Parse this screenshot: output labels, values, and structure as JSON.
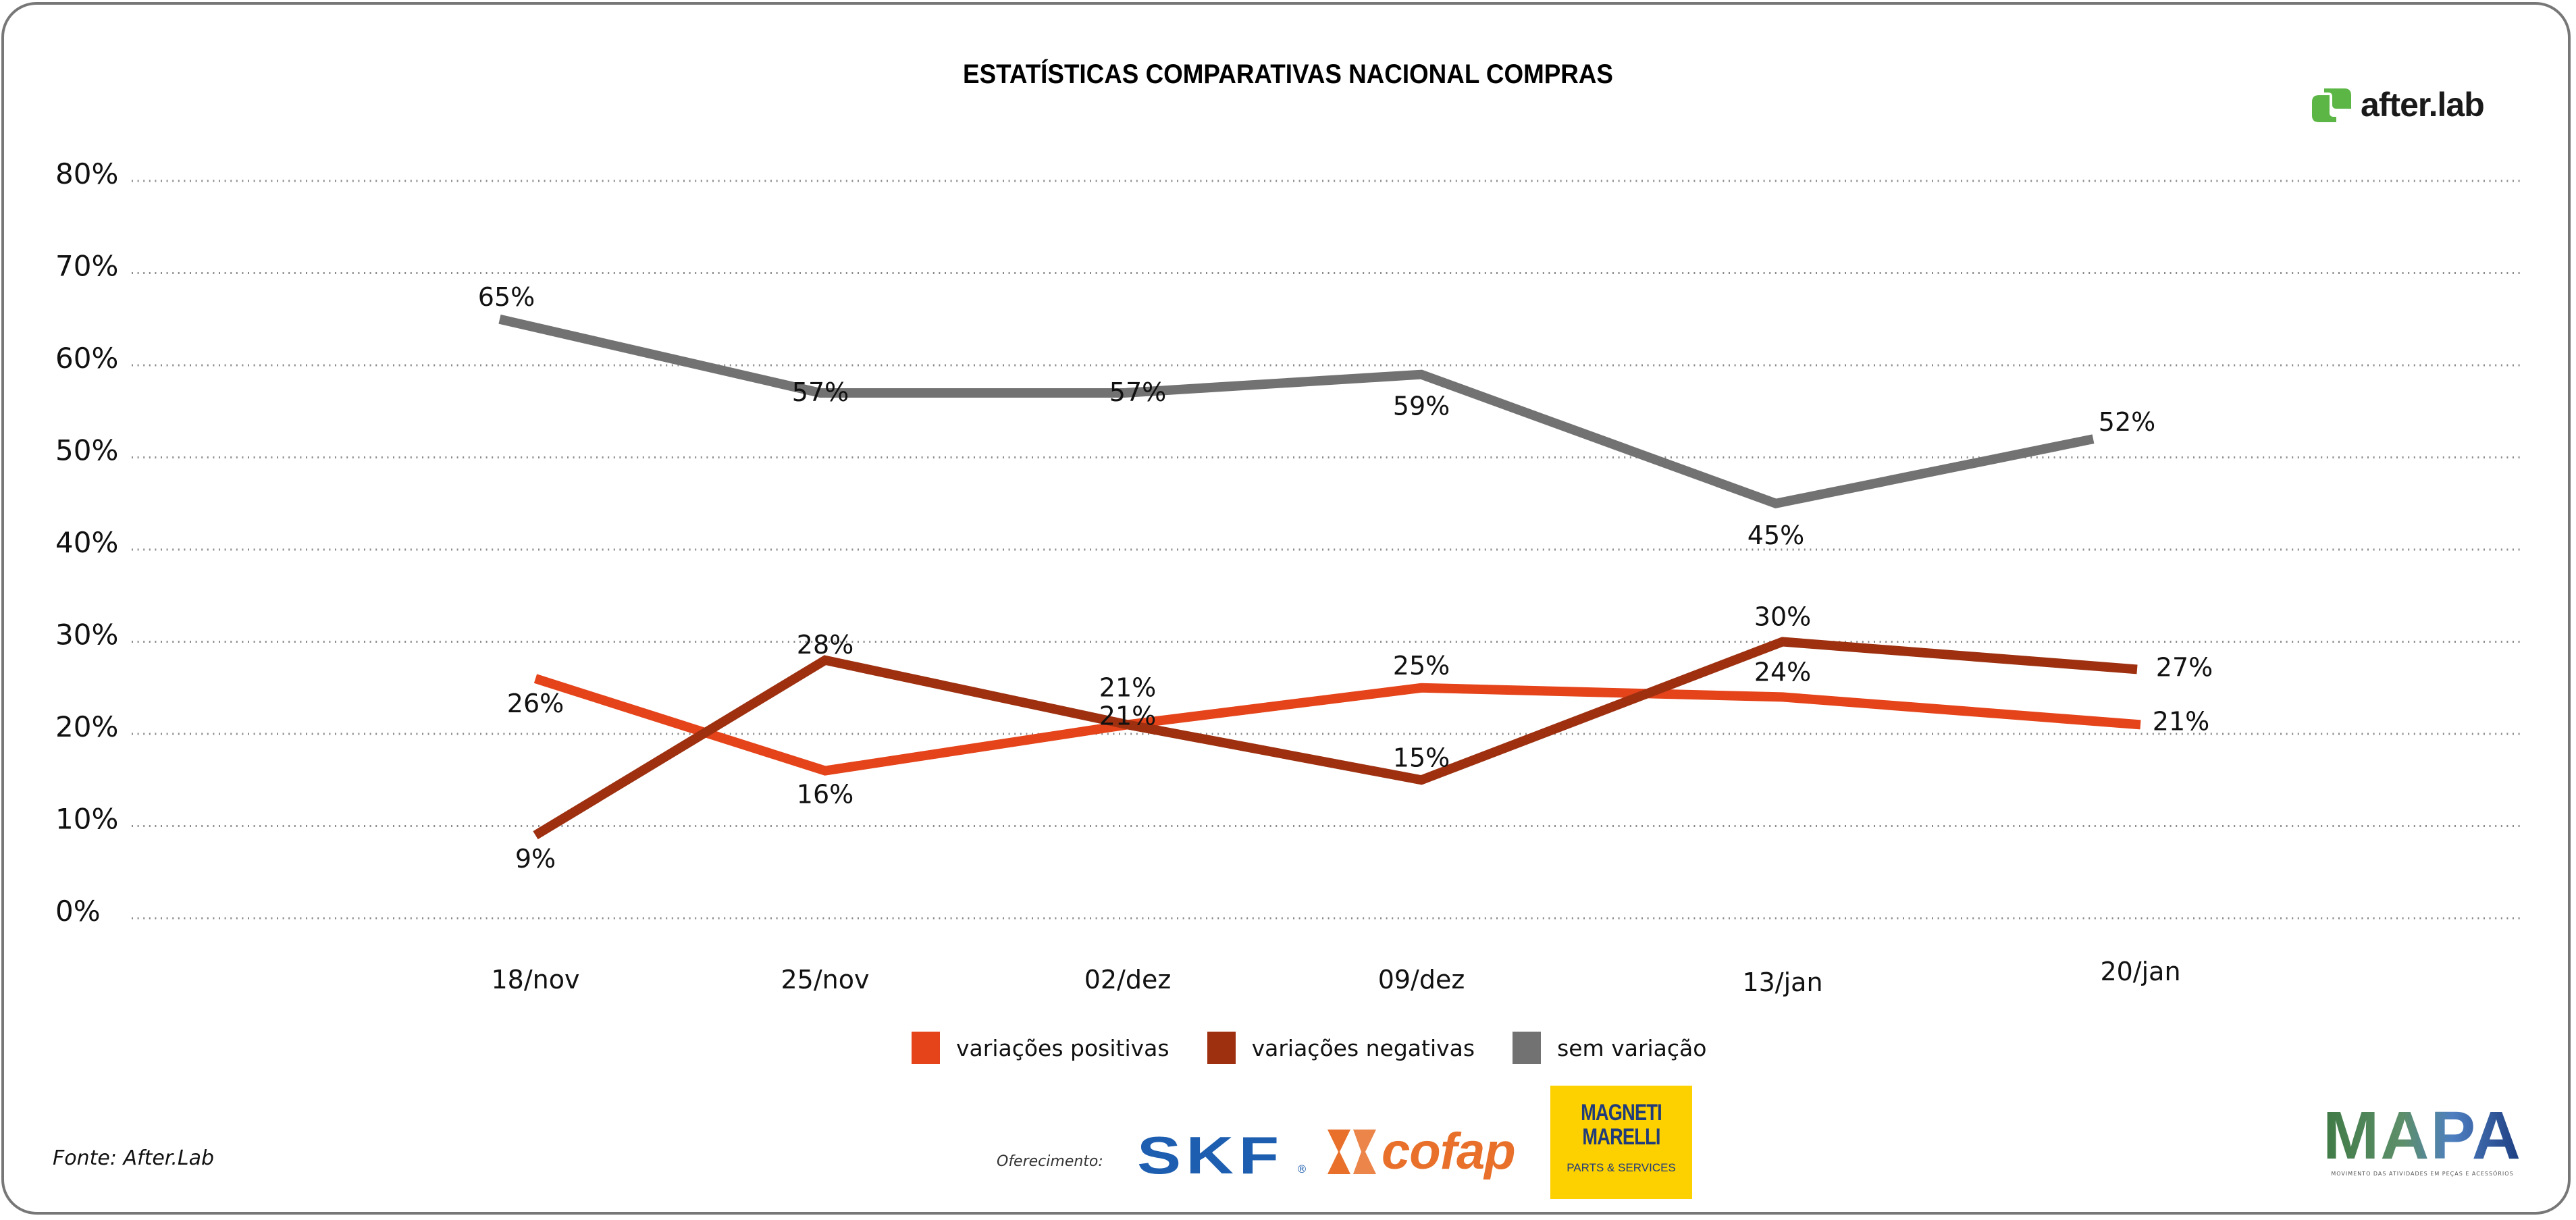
{
  "header": {
    "title": "ESTATÍSTICAS COMPARATIVAS NACIONAL COMPRAS",
    "logo_text": "after.lab"
  },
  "footer": {
    "source": "Fonte: After.Lab",
    "sponsor_label": "Oferecimento:",
    "sponsors": {
      "skf": "SKF",
      "skf_reg": "®",
      "cofap": "cofap",
      "marelli_line1": "MAGNETI",
      "marelli_line2": "MARELLI",
      "marelli_sub": "PARTS & SERVICES"
    },
    "mapa": {
      "title": "MAPA",
      "subtitle": "MOVIMENTO DAS ATIVIDADES EM PEÇAS E ACESSÓRIOS"
    }
  },
  "colors": {
    "positivas": "#e5431a",
    "negativas": "#9e3010",
    "sem_variacao": "#727272",
    "after_green": "#5cb646"
  },
  "chart_data": {
    "type": "line",
    "title": "ESTATÍSTICAS COMPARATIVAS NACIONAL COMPRAS",
    "xlabel": "",
    "ylabel": "",
    "categories": [
      "18/nov",
      "25/nov",
      "02/dez",
      "09/dez",
      "13/jan",
      "20/jan"
    ],
    "yticks": [
      "0%",
      "10%",
      "20%",
      "30%",
      "40%",
      "50%",
      "60%",
      "70%",
      "80%"
    ],
    "ylim": [
      0,
      80
    ],
    "grid": true,
    "legend_position": "bottom",
    "series": [
      {
        "key": "positivas",
        "name": "variações positivas",
        "color": "#e5431a",
        "values": [
          26,
          16,
          21,
          25,
          24,
          21
        ],
        "labels": [
          "26%",
          "16%",
          "21%",
          "25%",
          "24%",
          "21%"
        ]
      },
      {
        "key": "negativas",
        "name": "variações negativas",
        "color": "#9e3010",
        "values": [
          9,
          28,
          21,
          15,
          30,
          27
        ],
        "labels": [
          "9%",
          "28%",
          "21%",
          "15%",
          "30%",
          "27%"
        ]
      },
      {
        "key": "sem_variacao",
        "name": "sem variação",
        "color": "#727272",
        "values": [
          65,
          57,
          57,
          59,
          45,
          52
        ],
        "labels": [
          "65%",
          "57%",
          "57%",
          "59%",
          "45%",
          "52%"
        ]
      }
    ]
  }
}
